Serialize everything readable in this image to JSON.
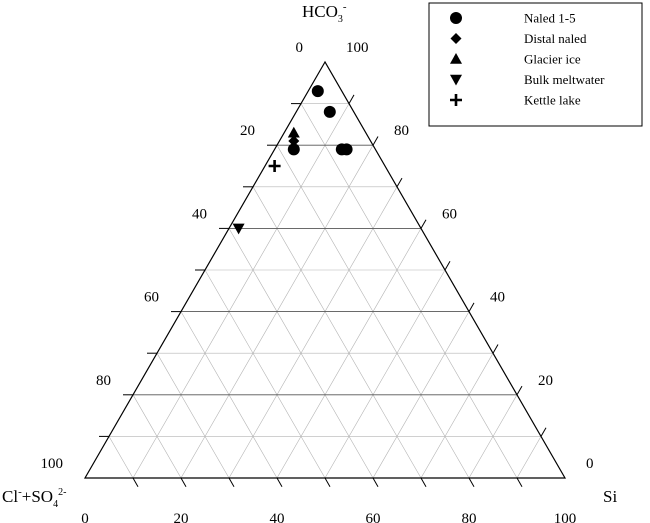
{
  "chart_data": {
    "type": "ternary-scatter",
    "axes": {
      "top": {
        "label_main": "HCO",
        "label_sub": "3",
        "label_sup": "-"
      },
      "left": {
        "label_main": "Cl",
        "label_sup1": "-",
        "label_mid": "+SO",
        "label_sub": "4",
        "label_sup2": "2-"
      },
      "right": {
        "label_main": "Si"
      }
    },
    "tick_labels": {
      "left_edge": [
        "0",
        "20",
        "40",
        "60",
        "80",
        "100"
      ],
      "right_edge": [
        "100",
        "80",
        "60",
        "40",
        "20",
        "0"
      ],
      "bottom_edge": [
        "0",
        "20",
        "40",
        "60",
        "80",
        "100"
      ]
    },
    "grid": true,
    "grid_step": 10,
    "legend_position": "top-right",
    "series": [
      {
        "name": "Naled 1-5",
        "marker": "circle",
        "points": [
          {
            "hco3": 93,
            "cl_so4": 5,
            "si": 2
          },
          {
            "hco3": 88,
            "cl_so4": 5,
            "si": 7
          },
          {
            "hco3": 79,
            "cl_so4": 17,
            "si": 4
          },
          {
            "hco3": 79,
            "cl_so4": 7,
            "si": 14
          },
          {
            "hco3": 79,
            "cl_so4": 6,
            "si": 15
          }
        ]
      },
      {
        "name": "Distal naled",
        "marker": "diamond",
        "points": [
          {
            "hco3": 81,
            "cl_so4": 16,
            "si": 3
          }
        ]
      },
      {
        "name": "Glacier ice",
        "marker": "triangle-up",
        "points": [
          {
            "hco3": 83,
            "cl_so4": 15,
            "si": 2
          }
        ]
      },
      {
        "name": "Bulk meltwater",
        "marker": "triangle-down",
        "points": [
          {
            "hco3": 60,
            "cl_so4": 38,
            "si": 2
          }
        ]
      },
      {
        "name": "Kettle lake",
        "marker": "plus",
        "points": [
          {
            "hco3": 75,
            "cl_so4": 23,
            "si": 2
          }
        ]
      }
    ]
  }
}
